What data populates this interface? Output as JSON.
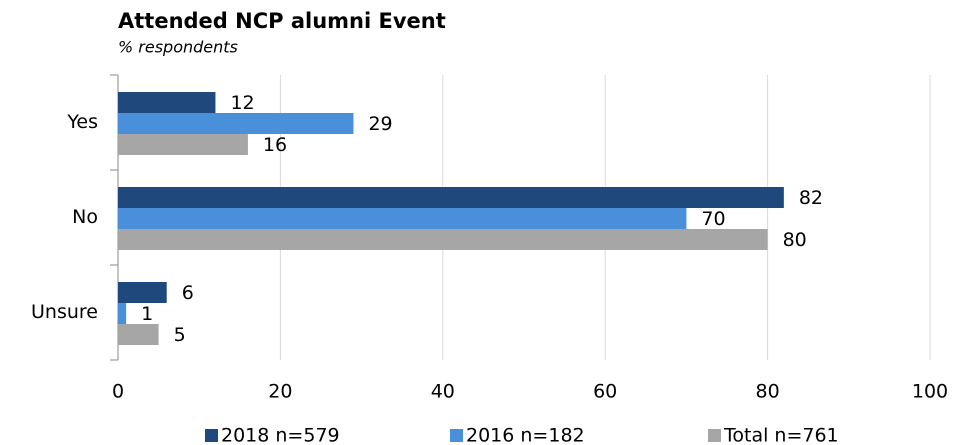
{
  "chart_data": {
    "type": "hbar",
    "title": "Attended NCP alumni Event",
    "subtitle": "% respondents",
    "categories": [
      "Yes",
      "No",
      "Unsure"
    ],
    "series": [
      {
        "name": "2018 n=579",
        "color": "#1f497d",
        "values": [
          12,
          82,
          6
        ]
      },
      {
        "name": "2016 n=182",
        "color": "#4a8fd9",
        "values": [
          29,
          70,
          1
        ]
      },
      {
        "name": "Total n=761",
        "color": "#a6a6a6",
        "values": [
          16,
          80,
          5
        ]
      }
    ],
    "xlim": [
      0,
      100
    ],
    "xticks": [
      0,
      20,
      40,
      60,
      80,
      100
    ],
    "grid": true,
    "legend": "bottom"
  }
}
